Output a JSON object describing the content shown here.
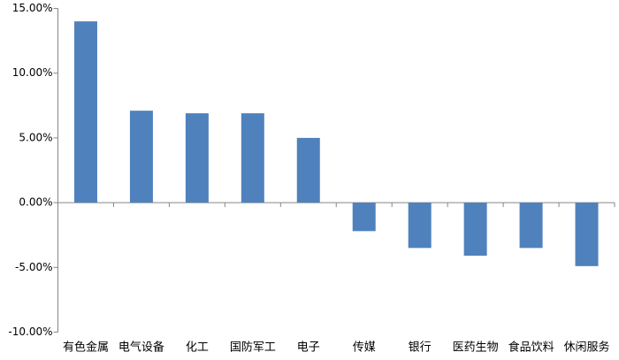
{
  "chart_data": {
    "type": "bar",
    "categories": [
      "有色金属",
      "电气设备",
      "化工",
      "国防军工",
      "电子",
      "传媒",
      "银行",
      "医药生物",
      "食品饮料",
      "休闲服务"
    ],
    "values": [
      14.0,
      7.1,
      6.9,
      6.9,
      5.0,
      -2.2,
      -3.5,
      -4.1,
      -3.5,
      -4.9
    ],
    "color": "#4f81bd",
    "ylim": [
      -10,
      15
    ],
    "yticks": [
      {
        "value": -10,
        "label": "-10.00%"
      },
      {
        "value": -5,
        "label": "-5.00%"
      },
      {
        "value": 0,
        "label": "0.00%"
      },
      {
        "value": 5,
        "label": "5.00%"
      },
      {
        "value": 10,
        "label": "10.00%"
      },
      {
        "value": 15,
        "label": "15.00%"
      }
    ],
    "grid": false
  }
}
